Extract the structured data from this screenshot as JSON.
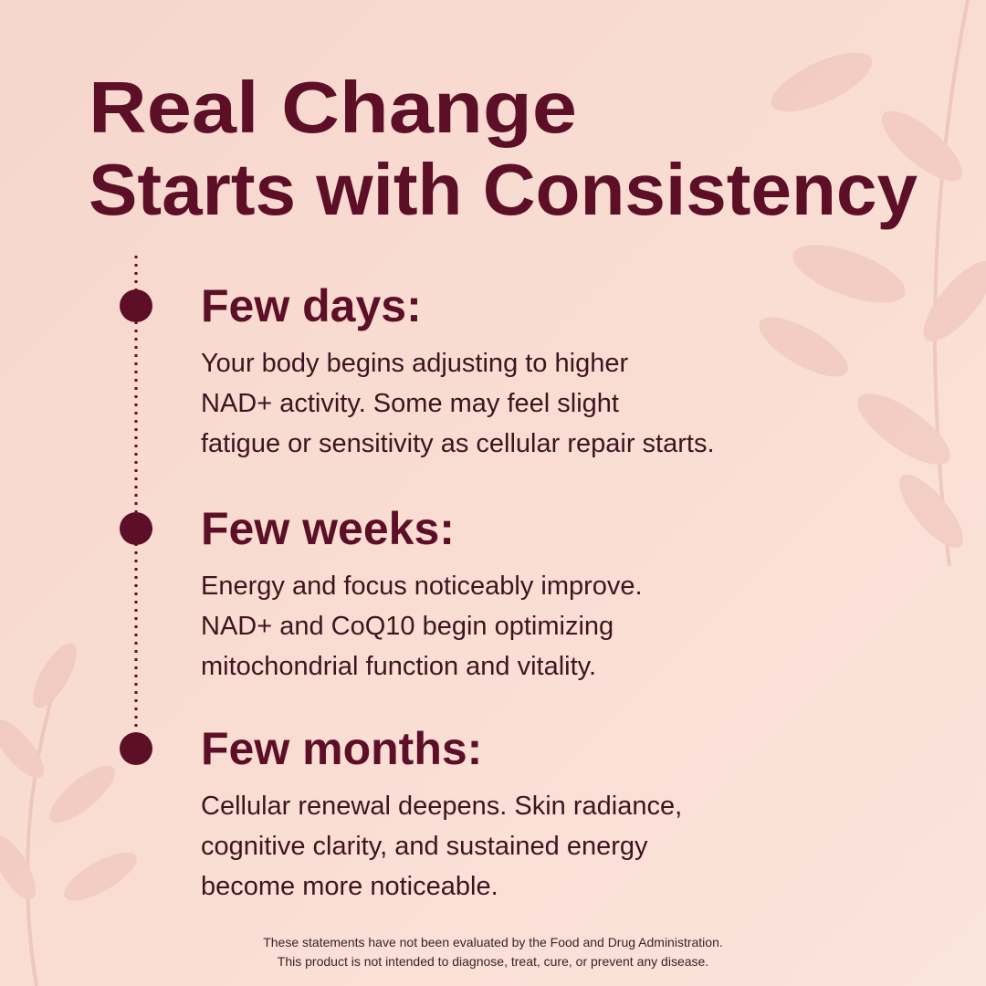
{
  "title": {
    "lines": [
      "Real Change",
      "Starts with Consistency"
    ]
  },
  "timeline": [
    {
      "heading": "Few days:",
      "lines": [
        "Your body begins adjusting to higher",
        "NAD+ activity. Some may feel slight",
        "fatigue or sensitivity as cellular repair starts."
      ]
    },
    {
      "heading": "Few weeks:",
      "lines": [
        "Energy and focus noticeably improve.",
        "NAD+ and CoQ10 begin optimizing",
        "mitochondrial function and vitality."
      ]
    },
    {
      "heading": "Few months:",
      "lines": [
        "Cellular renewal deepens. Skin radiance,",
        "cognitive clarity, and sustained energy",
        "become more noticeable."
      ]
    }
  ],
  "disclaimer": {
    "lines": [
      "These statements have not been evaluated by the Food and Drug Administration.",
      "This product is not intended to diagnose, treat, cure, or prevent any disease."
    ]
  }
}
